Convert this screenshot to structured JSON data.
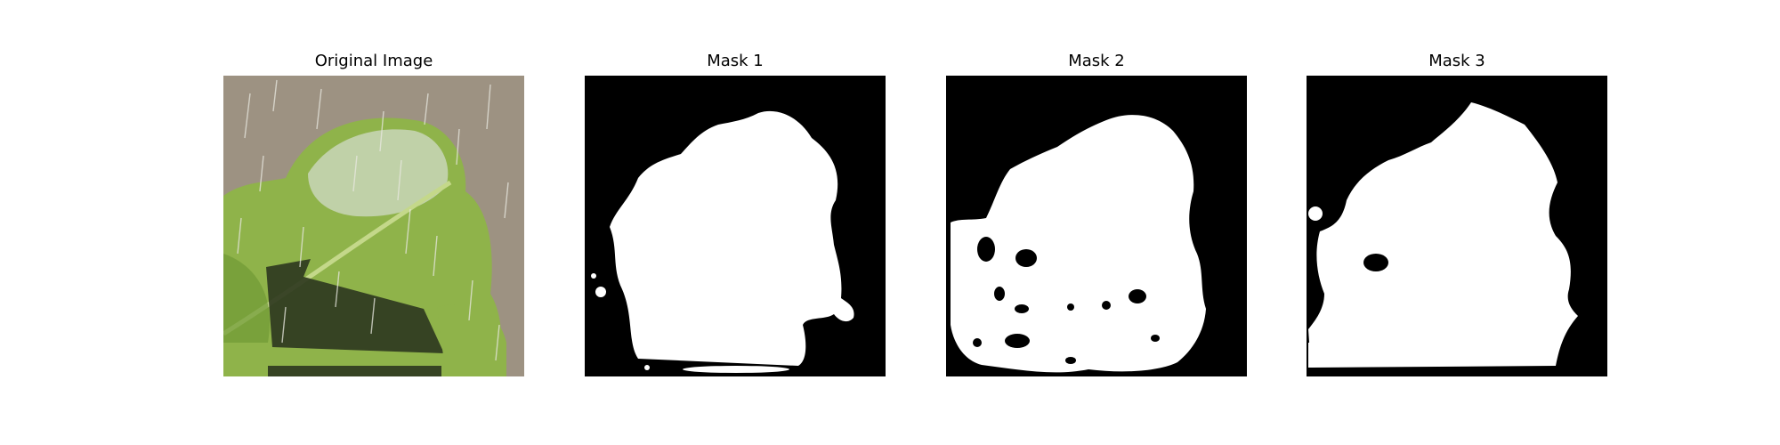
{
  "panels": [
    {
      "title": "Original Image"
    },
    {
      "title": "Mask 1"
    },
    {
      "title": "Mask 2"
    },
    {
      "title": "Mask 3"
    }
  ],
  "colors": {
    "background": "#ffffff",
    "mask_foreground": "#ffffff",
    "mask_background": "#000000",
    "leaf_light": "#8fb34a",
    "leaf_dark": "#6f9a34",
    "backdrop": "#9d9282",
    "shadow": "#2f3a1f",
    "lesion": "#c9d6b8"
  }
}
